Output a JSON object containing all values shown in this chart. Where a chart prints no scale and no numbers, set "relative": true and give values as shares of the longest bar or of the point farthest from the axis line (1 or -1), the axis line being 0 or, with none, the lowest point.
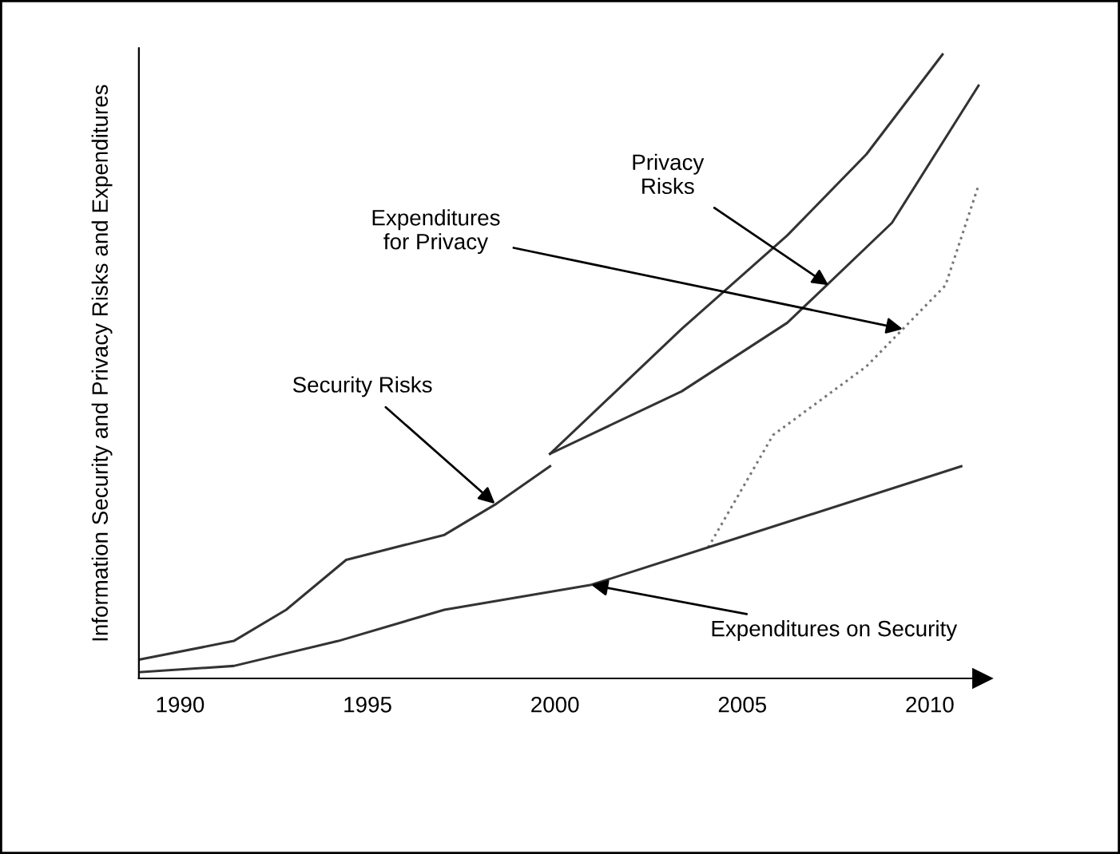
{
  "chart_data": {
    "type": "line",
    "relative": true,
    "ylabel": "Information Security and Privacy Risks and Expenditures",
    "xlim": [
      1988.9,
      2011.4
    ],
    "xticks": [
      1990,
      1995,
      2000,
      2005,
      2010
    ],
    "tick_labels": "x",
    "grid": false,
    "legend": false,
    "marker": "none",
    "series": [
      {
        "color": "#333333",
        "line_style": "solid",
        "x": [
          1988.9,
          1991.43,
          1992.83,
          1994.43,
          1997.05,
          1998.44,
          1999.87
        ],
        "values": [
          0.03,
          0.06,
          0.11,
          0.19,
          0.23,
          0.28,
          0.34
        ]
      },
      {
        "color": "#333333",
        "line_style": "solid",
        "x": [
          1999.87,
          2003.38,
          2006.2,
          2008.31,
          2010.34
        ],
        "values": [
          0.36,
          0.56,
          0.71,
          0.84,
          1.0
        ]
      },
      {
        "color": "#333333",
        "line_style": "solid",
        "x": [
          1999.87,
          2003.38,
          2006.2,
          2008.99,
          2011.3
        ],
        "values": [
          0.36,
          0.46,
          0.57,
          0.73,
          0.95
        ]
      },
      {
        "color": "#777777",
        "line_style": "dotted",
        "x": [
          2004.09,
          2005.82,
          2008.31,
          2010.42,
          2011.3
        ],
        "values": [
          0.21,
          0.39,
          0.5,
          0.63,
          0.79
        ]
      },
      {
        "color": "#333333",
        "line_style": "solid",
        "x": [
          1988.9,
          1991.43,
          1994.22,
          1997.05,
          2000.97,
          2004.09,
          2010.84
        ],
        "values": [
          0.01,
          0.02,
          0.06,
          0.11,
          0.15,
          0.21,
          0.34
        ]
      }
    ],
    "annotations": [
      {
        "text": "Security Risks",
        "x": 1998.4,
        "y": 0.28
      },
      {
        "text": "Expenditures\nfor Privacy",
        "x": 2009.28,
        "y": 0.56
      },
      {
        "text": "Privacy\nRisks",
        "x": 2007.3,
        "y": 0.63
      },
      {
        "text": "Expenditures on Security",
        "x": 2000.97,
        "y": 0.15
      }
    ]
  }
}
